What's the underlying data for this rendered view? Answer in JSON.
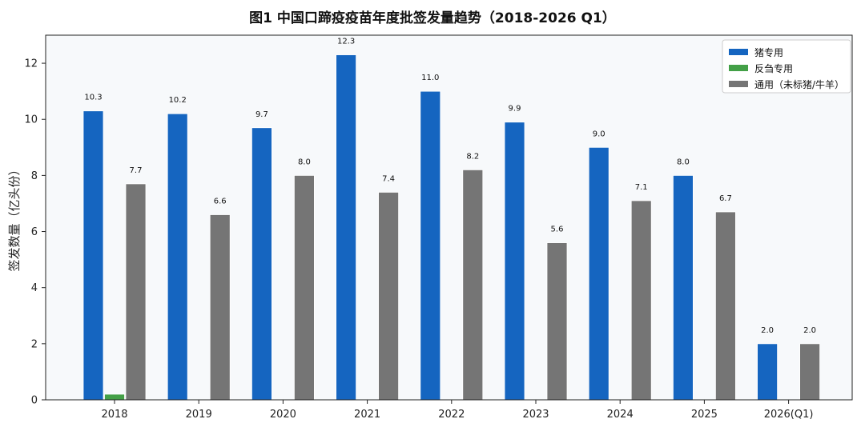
{
  "chart_data": {
    "type": "bar",
    "title": "图1  中国口蹄疫疫苗年度批签发量趋势（2018-2026 Q1）",
    "xlabel": "",
    "ylabel": "签发数量（亿头份）",
    "ylim": [
      0,
      13
    ],
    "yticks": [
      0,
      2,
      4,
      6,
      8,
      10,
      12
    ],
    "grid": false,
    "legend_position": "top-right",
    "categories": [
      "2018",
      "2019",
      "2020",
      "2021",
      "2022",
      "2023",
      "2024",
      "2025",
      "2026(Q1)"
    ],
    "series": [
      {
        "name": "猪专用",
        "color": "#1565C0",
        "values": [
          10.3,
          10.2,
          9.7,
          12.3,
          11.0,
          9.9,
          9.0,
          8.0,
          2.0
        ],
        "labels": [
          "10.3",
          "10.2",
          "9.7",
          "12.3",
          "11.0",
          "9.9",
          "9.0",
          "8.0",
          "2.0"
        ]
      },
      {
        "name": "反刍专用",
        "color": "#43A047",
        "values": [
          0.2,
          0,
          0,
          0,
          0,
          0,
          0,
          0,
          0
        ],
        "labels": []
      },
      {
        "name": "通用（未标猪/牛羊）",
        "color": "#757575",
        "values": [
          7.7,
          6.6,
          8.0,
          7.4,
          8.2,
          5.6,
          7.1,
          6.7,
          2.0
        ],
        "labels": [
          "7.7",
          "6.6",
          "8.0",
          "7.4",
          "8.2",
          "5.6",
          "7.1",
          "6.7",
          "2.0"
        ]
      }
    ]
  }
}
